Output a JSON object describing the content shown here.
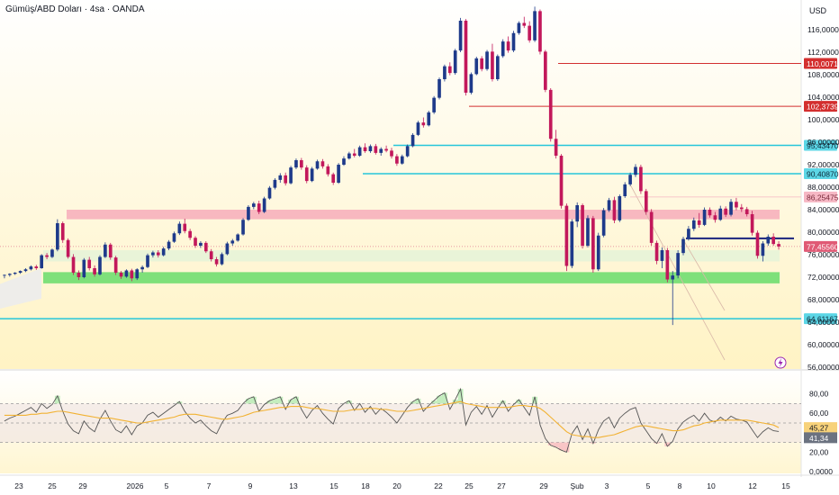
{
  "header": {
    "title": "Gümüş/ABD Doları · 4sa · OANDA",
    "currency": "USD"
  },
  "colors": {
    "up": "#1e3a8a",
    "down": "#c2185b",
    "bg_top": "#ffffff",
    "bg_bottom": "#fff3c4",
    "red_line": "#d32f2f",
    "cyan_line": "#26c6da",
    "navy_line": "#1a237e",
    "pink_zone": "#f5a3b5",
    "green_zone": "#7ee07a",
    "rsi_line": "#555555",
    "rsi_ma": "#f2b233"
  },
  "price_axis": {
    "ticks": [
      "116,00000",
      "112,00000",
      "108,00000",
      "104,00000",
      "100,00000",
      "96,00000",
      "92,00000",
      "88,00000",
      "84,00000",
      "80,00000",
      "76,00000",
      "72,00000",
      "68,00000",
      "64,00000",
      "60,00000",
      "56,00000"
    ]
  },
  "rsi_axis": {
    "ticks": [
      "80,00",
      "60,00",
      "40,00",
      "20,00",
      "0,0000"
    ],
    "rsi_value": "41,34",
    "ma_value": "45,27"
  },
  "x_axis": {
    "ticks": [
      "23",
      "25",
      "29",
      "2026",
      "5",
      "7",
      "9",
      "13",
      "15",
      "18",
      "20",
      "22",
      "25",
      "27",
      "29",
      "Şub",
      "3",
      "5",
      "8",
      "10",
      "12",
      "15"
    ]
  },
  "chart_data": {
    "type": "candlestick",
    "price_range": [
      56,
      120
    ],
    "last_price": "77,45560",
    "levels": [
      {
        "value": 110.00716,
        "label": "110,00716",
        "kind": "red"
      },
      {
        "value": 102.37397,
        "label": "102,37397",
        "kind": "red"
      },
      {
        "value": 95.4347,
        "label": "95,43470",
        "kind": "cyan"
      },
      {
        "value": 90.4087,
        "label": "90,40870",
        "kind": "cyan"
      },
      {
        "value": 86.25475,
        "label": "86,25475",
        "kind": "pink"
      },
      {
        "value": 64.61167,
        "label": "64,61167",
        "kind": "cyan"
      }
    ],
    "zones": [
      {
        "kind": "pink",
        "from": 82.3,
        "to": 84.0
      },
      {
        "kind": "green",
        "from": 70.9,
        "to": 72.9
      },
      {
        "kind": "lightgreen",
        "from": 74.8,
        "to": 76.8
      }
    ],
    "candles": [
      [
        72.3,
        72.5,
        71.8,
        72.4
      ],
      [
        72.4,
        72.7,
        72.1,
        72.6
      ],
      [
        72.6,
        72.9,
        72.4,
        72.8
      ],
      [
        72.8,
        73.2,
        72.6,
        73.1
      ],
      [
        73.1,
        73.6,
        72.9,
        73.4
      ],
      [
        73.4,
        74.1,
        73.2,
        73.9
      ],
      [
        73.9,
        74.2,
        73.3,
        73.6
      ],
      [
        73.6,
        76.1,
        73.5,
        75.9
      ],
      [
        75.9,
        76.3,
        75.2,
        75.6
      ],
      [
        75.6,
        77.1,
        75.4,
        76.9
      ],
      [
        76.9,
        82.3,
        76.6,
        81.6
      ],
      [
        81.6,
        81.9,
        78.1,
        78.6
      ],
      [
        78.6,
        78.9,
        75.3,
        75.6
      ],
      [
        75.6,
        76.1,
        72.4,
        72.8
      ],
      [
        72.8,
        73.2,
        71.5,
        72.0
      ],
      [
        72.0,
        75.4,
        71.8,
        75.1
      ],
      [
        75.1,
        75.6,
        73.2,
        73.6
      ],
      [
        73.6,
        74.1,
        72.1,
        72.5
      ],
      [
        72.5,
        75.9,
        72.3,
        75.6
      ],
      [
        75.6,
        78.2,
        75.4,
        77.8
      ],
      [
        77.8,
        78.1,
        75.1,
        75.5
      ],
      [
        75.5,
        75.8,
        72.4,
        72.8
      ],
      [
        72.8,
        73.1,
        71.7,
        72.1
      ],
      [
        72.1,
        73.4,
        71.9,
        73.2
      ],
      [
        73.2,
        73.5,
        71.3,
        71.8
      ],
      [
        71.8,
        73.6,
        71.5,
        73.4
      ],
      [
        73.4,
        74.1,
        72.8,
        73.8
      ],
      [
        73.8,
        76.2,
        73.6,
        75.9
      ],
      [
        75.9,
        76.7,
        75.5,
        76.4
      ],
      [
        76.4,
        76.8,
        75.5,
        75.9
      ],
      [
        75.9,
        77.4,
        75.7,
        77.1
      ],
      [
        77.1,
        78.6,
        76.8,
        78.3
      ],
      [
        78.3,
        80.1,
        78.1,
        79.8
      ],
      [
        79.8,
        81.9,
        79.5,
        81.5
      ],
      [
        81.5,
        82.4,
        79.8,
        80.2
      ],
      [
        80.2,
        80.6,
        78.6,
        79.0
      ],
      [
        79.0,
        79.3,
        77.2,
        77.6
      ],
      [
        77.6,
        78.4,
        77.2,
        78.1
      ],
      [
        78.1,
        78.4,
        76.3,
        76.6
      ],
      [
        76.6,
        77.0,
        74.8,
        75.2
      ],
      [
        75.2,
        75.6,
        73.9,
        74.3
      ],
      [
        74.3,
        76.4,
        74.1,
        76.1
      ],
      [
        76.1,
        78.3,
        75.9,
        78.0
      ],
      [
        78.0,
        78.8,
        77.6,
        78.5
      ],
      [
        78.5,
        79.8,
        78.3,
        79.6
      ],
      [
        79.6,
        82.5,
        79.4,
        82.2
      ],
      [
        82.2,
        84.8,
        82.0,
        84.5
      ],
      [
        84.5,
        85.4,
        84.1,
        85.1
      ],
      [
        85.1,
        85.6,
        83.2,
        83.6
      ],
      [
        83.6,
        86.3,
        83.4,
        86.0
      ],
      [
        86.0,
        88.2,
        85.8,
        87.9
      ],
      [
        87.9,
        89.6,
        87.6,
        89.3
      ],
      [
        89.3,
        90.5,
        88.8,
        90.1
      ],
      [
        90.1,
        90.6,
        88.3,
        88.7
      ],
      [
        88.7,
        91.8,
        88.5,
        91.5
      ],
      [
        91.5,
        93.1,
        91.2,
        92.8
      ],
      [
        92.8,
        93.2,
        91.1,
        91.5
      ],
      [
        91.5,
        91.9,
        88.7,
        89.1
      ],
      [
        89.1,
        91.6,
        88.9,
        91.3
      ],
      [
        91.3,
        92.9,
        91.1,
        92.6
      ],
      [
        92.6,
        93.0,
        91.3,
        91.7
      ],
      [
        91.7,
        92.1,
        89.9,
        90.3
      ],
      [
        90.3,
        90.6,
        88.4,
        88.8
      ],
      [
        88.8,
        92.3,
        88.6,
        92.0
      ],
      [
        92.0,
        93.5,
        91.8,
        93.1
      ],
      [
        93.1,
        94.3,
        92.9,
        94.0
      ],
      [
        94.0,
        94.8,
        93.3,
        93.6
      ],
      [
        93.6,
        95.4,
        93.4,
        95.1
      ],
      [
        95.1,
        95.8,
        94.1,
        94.4
      ],
      [
        94.4,
        95.6,
        94.1,
        95.3
      ],
      [
        95.3,
        95.7,
        93.8,
        94.1
      ],
      [
        94.1,
        95.1,
        93.6,
        94.8
      ],
      [
        94.8,
        95.4,
        94.2,
        94.5
      ],
      [
        94.5,
        95.0,
        93.1,
        93.5
      ],
      [
        93.5,
        93.9,
        91.8,
        92.2
      ],
      [
        92.2,
        93.8,
        92.0,
        93.5
      ],
      [
        93.5,
        95.6,
        93.3,
        95.3
      ],
      [
        95.3,
        97.6,
        95.1,
        97.3
      ],
      [
        97.3,
        99.8,
        97.1,
        99.5
      ],
      [
        99.5,
        100.4,
        98.6,
        99.0
      ],
      [
        99.0,
        101.6,
        98.8,
        101.3
      ],
      [
        101.3,
        104.2,
        101.0,
        103.9
      ],
      [
        103.9,
        107.5,
        103.6,
        107.2
      ],
      [
        107.2,
        109.8,
        106.8,
        109.5
      ],
      [
        109.5,
        110.2,
        107.9,
        108.3
      ],
      [
        108.3,
        112.6,
        108.0,
        112.3
      ],
      [
        112.3,
        118.1,
        112.0,
        117.6
      ],
      [
        117.6,
        117.9,
        104.3,
        104.8
      ],
      [
        104.8,
        108.4,
        104.5,
        108.1
      ],
      [
        108.1,
        111.2,
        107.9,
        110.9
      ],
      [
        110.9,
        111.3,
        108.6,
        109.0
      ],
      [
        109.0,
        112.4,
        108.7,
        112.1
      ],
      [
        112.1,
        113.5,
        106.8,
        107.2
      ],
      [
        107.2,
        111.6,
        106.9,
        111.3
      ],
      [
        111.3,
        114.3,
        111.0,
        113.9
      ],
      [
        113.9,
        114.8,
        111.9,
        112.3
      ],
      [
        112.3,
        115.8,
        112.0,
        115.4
      ],
      [
        115.4,
        117.5,
        115.1,
        117.2
      ],
      [
        117.2,
        118.3,
        116.3,
        116.7
      ],
      [
        116.7,
        117.5,
        113.7,
        114.1
      ],
      [
        114.1,
        120.1,
        113.8,
        119.3
      ],
      [
        119.3,
        119.6,
        111.6,
        112.1
      ],
      [
        112.1,
        112.4,
        104.9,
        105.3
      ],
      [
        105.3,
        105.6,
        96.1,
        96.6
      ],
      [
        96.6,
        98.2,
        93.1,
        93.6
      ],
      [
        93.6,
        93.9,
        84.2,
        84.7
      ],
      [
        84.7,
        85.1,
        73.1,
        74.0
      ],
      [
        74.0,
        82.3,
        73.6,
        81.9
      ],
      [
        81.9,
        85.3,
        80.9,
        84.8
      ],
      [
        84.8,
        85.1,
        77.1,
        77.6
      ],
      [
        77.6,
        83.0,
        77.3,
        82.5
      ],
      [
        82.5,
        82.9,
        72.8,
        73.4
      ],
      [
        73.4,
        79.9,
        73.1,
        79.4
      ],
      [
        79.4,
        84.3,
        79.1,
        83.9
      ],
      [
        83.9,
        86.1,
        83.6,
        85.7
      ],
      [
        85.7,
        86.3,
        81.6,
        82.1
      ],
      [
        82.1,
        86.7,
        81.8,
        86.4
      ],
      [
        86.4,
        88.9,
        86.1,
        88.5
      ],
      [
        88.5,
        90.6,
        88.2,
        90.2
      ],
      [
        90.2,
        92.1,
        89.8,
        91.6
      ],
      [
        91.6,
        92.0,
        86.8,
        87.3
      ],
      [
        87.3,
        87.7,
        83.1,
        83.6
      ],
      [
        83.6,
        84.1,
        77.6,
        78.1
      ],
      [
        78.1,
        78.5,
        74.3,
        74.9
      ],
      [
        74.9,
        77.3,
        73.6,
        76.8
      ],
      [
        76.8,
        77.2,
        71.1,
        71.6
      ],
      [
        71.6,
        73.1,
        63.5,
        72.3
      ],
      [
        72.3,
        76.8,
        71.8,
        76.3
      ],
      [
        76.3,
        79.2,
        75.9,
        78.8
      ],
      [
        78.8,
        81.1,
        78.5,
        80.6
      ],
      [
        80.6,
        82.6,
        80.2,
        82.1
      ],
      [
        82.1,
        83.4,
        80.8,
        81.3
      ],
      [
        81.3,
        84.4,
        81.1,
        84.0
      ],
      [
        84.0,
        84.4,
        82.6,
        83.0
      ],
      [
        83.0,
        83.6,
        81.7,
        82.2
      ],
      [
        82.2,
        84.7,
        82.0,
        84.2
      ],
      [
        84.2,
        84.6,
        82.7,
        83.1
      ],
      [
        83.1,
        85.9,
        82.8,
        85.4
      ],
      [
        85.4,
        86.1,
        83.9,
        84.4
      ],
      [
        84.4,
        85.0,
        83.6,
        84.1
      ],
      [
        84.1,
        84.5,
        82.8,
        83.2
      ],
      [
        83.2,
        83.8,
        79.4,
        79.9
      ],
      [
        79.9,
        80.3,
        75.3,
        75.8
      ],
      [
        75.8,
        78.4,
        74.8,
        78.0
      ],
      [
        78.0,
        79.6,
        77.6,
        79.2
      ],
      [
        79.2,
        79.8,
        77.6,
        77.9
      ],
      [
        77.9,
        78.4,
        76.9,
        77.46
      ]
    ],
    "rsi": {
      "range": [
        0,
        100
      ],
      "bands": [
        30,
        50,
        70
      ],
      "values": [
        52,
        55,
        57,
        60,
        63,
        66,
        61,
        70,
        65,
        69,
        78,
        62,
        49,
        42,
        39,
        52,
        45,
        41,
        54,
        63,
        52,
        43,
        40,
        47,
        38,
        47,
        50,
        58,
        61,
        56,
        60,
        64,
        68,
        72,
        62,
        55,
        50,
        53,
        47,
        42,
        39,
        50,
        58,
        60,
        63,
        70,
        75,
        77,
        62,
        69,
        73,
        75,
        77,
        64,
        74,
        77,
        64,
        55,
        63,
        68,
        60,
        54,
        49,
        65,
        70,
        73,
        63,
        70,
        61,
        67,
        59,
        65,
        61,
        56,
        50,
        58,
        66,
        72,
        75,
        62,
        68,
        73,
        78,
        81,
        64,
        74,
        85,
        48,
        61,
        67,
        59,
        68,
        56,
        65,
        73,
        62,
        69,
        74,
        66,
        58,
        77,
        48,
        34,
        27,
        25,
        22,
        20,
        39,
        47,
        33,
        44,
        29,
        43,
        52,
        56,
        45,
        55,
        60,
        64,
        66,
        50,
        42,
        34,
        29,
        39,
        26,
        31,
        44,
        51,
        55,
        58,
        52,
        60,
        53,
        51,
        56,
        52,
        57,
        54,
        53,
        51,
        43,
        35,
        41,
        45,
        42,
        41.34
      ],
      "ma": [
        58,
        58,
        58,
        58,
        58,
        59,
        59,
        60,
        60,
        61,
        62,
        62,
        61,
        60,
        59,
        58,
        57,
        56,
        55,
        55,
        55,
        54,
        53,
        52,
        51,
        50,
        50,
        51,
        52,
        53,
        54,
        55,
        56,
        58,
        59,
        59,
        59,
        58,
        57,
        56,
        55,
        54,
        54,
        55,
        56,
        57,
        59,
        61,
        62,
        63,
        64,
        65,
        66,
        66,
        67,
        67,
        67,
        66,
        65,
        65,
        64,
        63,
        62,
        62,
        62,
        63,
        64,
        64,
        65,
        65,
        65,
        64,
        64,
        63,
        62,
        62,
        62,
        63,
        64,
        65,
        66,
        67,
        68,
        69,
        70,
        71,
        72,
        70,
        69,
        68,
        67,
        66,
        66,
        66,
        66,
        66,
        67,
        68,
        68,
        67,
        67,
        65,
        61,
        56,
        51,
        46,
        41,
        38,
        37,
        36,
        36,
        35,
        35,
        36,
        37,
        38,
        40,
        42,
        44,
        46,
        47,
        47,
        46,
        45,
        44,
        43,
        42,
        42,
        43,
        45,
        47,
        48,
        50,
        51,
        52,
        53,
        53,
        53,
        53,
        53,
        53,
        52,
        51,
        50,
        49,
        48,
        45.27
      ]
    }
  }
}
